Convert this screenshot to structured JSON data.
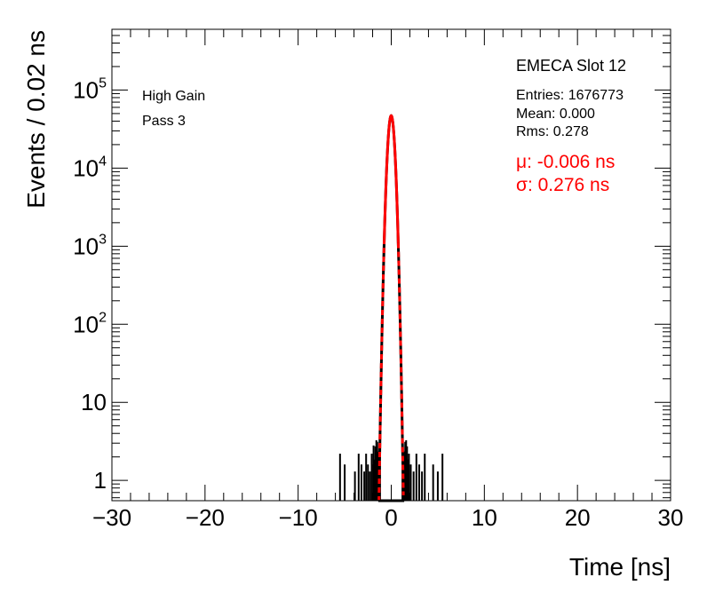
{
  "chart_data": {
    "type": "histogram",
    "xlabel": "Time [ns]",
    "ylabel": "Events / 0.02 ns",
    "xlim": [
      -30,
      30
    ],
    "ylim": [
      0.55,
      600000
    ],
    "log_y": true,
    "x_ticks": [
      -30,
      -20,
      -10,
      0,
      10,
      20,
      30
    ],
    "x_tick_labels": [
      "−30",
      "−20",
      "−10",
      "0",
      "10",
      "20",
      "30"
    ],
    "y_ticks": [
      1,
      10,
      100,
      1000,
      10000,
      100000
    ],
    "y_tick_labels": [
      {
        "base": "1",
        "exp": ""
      },
      {
        "base": "10",
        "exp": ""
      },
      {
        "base": "10",
        "exp": "2"
      },
      {
        "base": "10",
        "exp": "3"
      },
      {
        "base": "10",
        "exp": "4"
      },
      {
        "base": "10",
        "exp": "5"
      }
    ],
    "labels": {
      "gain": "High Gain",
      "pass": "Pass 3",
      "title": "EMECA Slot 12",
      "entries": "Entries: 1676773",
      "mean": "Mean: 0.000",
      "rms": "Rms: 0.278",
      "fit_mu": "μ: -0.006 ns",
      "fit_sigma": "σ: 0.276 ns"
    },
    "histogram": {
      "bin_width": 0.02,
      "total_entries": 1676773,
      "mean": 0.0,
      "rms": 0.278,
      "outlier_bins_x": [
        -5.5,
        -5.0,
        -3.9,
        -3.5,
        -3.2,
        -2.9,
        -2.7,
        -2.5,
        -2.3,
        -2.1,
        -1.9,
        -1.7,
        -1.5,
        1.5,
        1.7,
        1.9,
        2.1,
        2.4,
        2.7,
        3.0,
        3.3,
        3.6,
        4.5,
        5.0,
        5.5
      ]
    },
    "fit": {
      "function": "gaussian",
      "mu": -0.006,
      "sigma": 0.276,
      "peak": 47000
    },
    "colors": {
      "histogram": "#000000",
      "fit": "#ff0000",
      "axis": "#000000"
    }
  }
}
